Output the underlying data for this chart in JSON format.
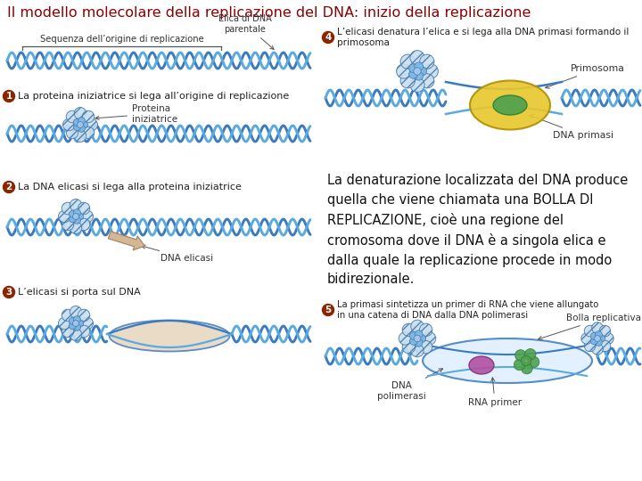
{
  "title": "Il modello molecolare della replicazione del DNA: inizio della replicazione",
  "title_color": "#8B0000",
  "title_fontsize": 11.5,
  "background_color": "#ffffff",
  "left_panel": {
    "top_label_seq": "Sequenza dell’origine di replicazione",
    "top_label_elica": "Elica di DNA\nparentale",
    "step1_text": "La proteina iniziatrice si lega all’origine di replicazione",
    "step1_sublabel": "Proteina\niniziatrice",
    "step2_text": "La DNA elicasi si lega alla proteina iniziatrice",
    "step2_sublabel": "DNA elicasi",
    "step3_text": "L’elicasi si porta sul DNA"
  },
  "right_panel": {
    "step4_text": "L’elicasi denatura l’elica e si lega alla DNA primasi formando il\nprimosoma",
    "step4_label1": "Primosoma",
    "step4_label2": "DNA primasi",
    "text_box": "La denaturazione localizzata del DNA produce\nquella che viene chiamata una BOLLA DI\nREPLICAZIONE, cioè una regione del\ncromosoma dove il DNA è a singola elica e\ndalla quale la replicazione procede in modo\nbidirezionale.",
    "step5_text": "La primasi sintetizza un primer di RNA che viene allungato\nin una catena di DNA dalla DNA polimerasi",
    "step5_label1": "Bolla replicativa",
    "step5_label2": "RNA primer",
    "step5_label3": "DNA\npolimerasi"
  },
  "step_bg": "#8B2500",
  "dna_color1": "#3a7bbf",
  "dna_color2": "#5aaae0",
  "dna_cross": "#aad0f0",
  "protein_color": "#7ab8e8",
  "protein_edge": "#4a7aaa",
  "protein2_color": "#9ecce8",
  "protein2_edge": "#5a8aaa",
  "elicasi_color": "#d4b896",
  "elicasi_edge": "#a08060",
  "primosoma_color": "#e8c830",
  "primosoma_edge": "#b09000",
  "dnap_color": "#50a050",
  "dnap_edge": "#308030",
  "bubble_color": "#e8d8c0",
  "bubble_edge": "#4a80cc",
  "text_color": "#222222"
}
